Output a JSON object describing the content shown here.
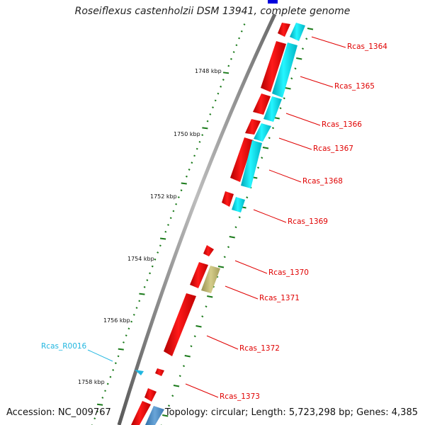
{
  "title": "Roseiflexus castenholzii DSM 13941, complete genome",
  "footer": {
    "accession": "Accession: NC_009767",
    "summary": "Topology: circular; Length: 5,723,298 bp; Genes: 4,385"
  },
  "ruler_labels": [
    "1748 kbp",
    "1750 kbp",
    "1752 kbp",
    "1754 kbp",
    "1756 kbp",
    "1758 kbp"
  ],
  "gene_labels": [
    {
      "name": "Rcas_1364",
      "type": "cds"
    },
    {
      "name": "Rcas_1365",
      "type": "cds"
    },
    {
      "name": "Rcas_1366",
      "type": "cds"
    },
    {
      "name": "Rcas_1367",
      "type": "cds"
    },
    {
      "name": "Rcas_1368",
      "type": "cds"
    },
    {
      "name": "Rcas_1369",
      "type": "cds"
    },
    {
      "name": "Rcas_1370",
      "type": "cds"
    },
    {
      "name": "Rcas_1371",
      "type": "cds"
    },
    {
      "name": "Rcas_1372",
      "type": "cds"
    },
    {
      "name": "Rcas_1373",
      "type": "cds"
    },
    {
      "name": "Rcas_R0016",
      "type": "rna"
    }
  ],
  "colors": {
    "cds": "#ff0000",
    "cog_cyan": "#00e5ee",
    "cog_khaki": "#c8c07a",
    "cog_blue": "#3f7fbf",
    "rna": "#20b6e0",
    "tick": "#1a7a1a",
    "backbone": "#808080"
  }
}
